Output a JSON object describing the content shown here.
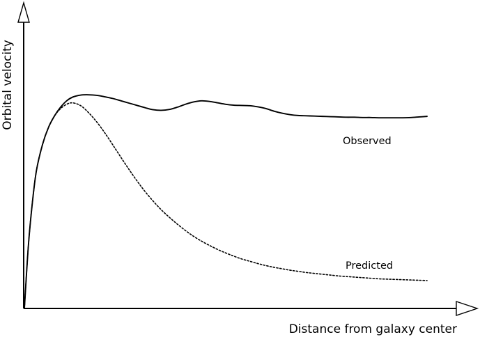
{
  "chart_data": {
    "type": "line",
    "title": "",
    "xlabel": "Distance from galaxy center",
    "ylabel": "Orbital velocity",
    "xlim": [
      0,
      100
    ],
    "ylim": [
      0,
      100
    ],
    "ticks": false,
    "grid": false,
    "legend": "inline labels at right end of each curve",
    "series": [
      {
        "name": "Observed",
        "style": "solid",
        "color": "#000000",
        "x": [
          0,
          1,
          2,
          3,
          4.5,
          6,
          7.5,
          9,
          10.5,
          12,
          14,
          16,
          18,
          20,
          22,
          24,
          26,
          28,
          30,
          32,
          34,
          36,
          38,
          40,
          42,
          44,
          46,
          48,
          50,
          52,
          54,
          56,
          58,
          60,
          62,
          64,
          66,
          68,
          70,
          72,
          74,
          76,
          78,
          80,
          82,
          84,
          86,
          88,
          90,
          92,
          94,
          96,
          98,
          100
        ],
        "y": [
          0,
          22,
          37,
          48,
          57,
          63,
          67,
          70,
          72.2,
          73.5,
          74.2,
          74.3,
          74.1,
          73.6,
          73,
          72.2,
          71.4,
          70.6,
          69.8,
          69.1,
          68.9,
          69.2,
          70,
          71,
          71.8,
          72.2,
          72,
          71.5,
          71,
          70.7,
          70.6,
          70.5,
          70.1,
          69.5,
          68.6,
          67.9,
          67.4,
          67.1,
          67,
          66.9,
          66.8,
          66.7,
          66.6,
          66.5,
          66.5,
          66.4,
          66.4,
          66.3,
          66.3,
          66.3,
          66.3,
          66.4,
          66.6,
          66.8
        ]
      },
      {
        "name": "Predicted",
        "style": "dotted",
        "color": "#000000",
        "x": [
          0,
          1,
          2,
          3,
          4.5,
          6,
          7.5,
          9,
          10.5,
          12,
          14,
          16,
          18,
          20,
          22,
          24,
          26,
          28,
          30,
          32,
          34,
          36,
          38,
          40,
          42,
          44,
          46,
          48,
          50,
          52,
          54,
          56,
          58,
          60,
          62,
          64,
          66,
          68,
          70,
          72,
          74,
          76,
          78,
          80,
          82,
          84,
          86,
          88,
          90,
          92,
          94,
          96,
          98,
          100
        ],
        "y": [
          0,
          22,
          37,
          48,
          57,
          63,
          67,
          69.5,
          71,
          71.5,
          70.5,
          68,
          64.8,
          61,
          56.8,
          52.5,
          48.3,
          44.3,
          40.6,
          37.3,
          34.3,
          31.7,
          29.3,
          27.1,
          25.1,
          23.4,
          21.9,
          20.5,
          19.3,
          18.2,
          17.2,
          16.4,
          15.6,
          14.9,
          14.3,
          13.8,
          13.3,
          12.9,
          12.5,
          12.2,
          11.9,
          11.6,
          11.3,
          11.1,
          10.9,
          10.7,
          10.5,
          10.3,
          10.2,
          10.1,
          10.0,
          9.9,
          9.8,
          9.7
        ]
      }
    ]
  }
}
